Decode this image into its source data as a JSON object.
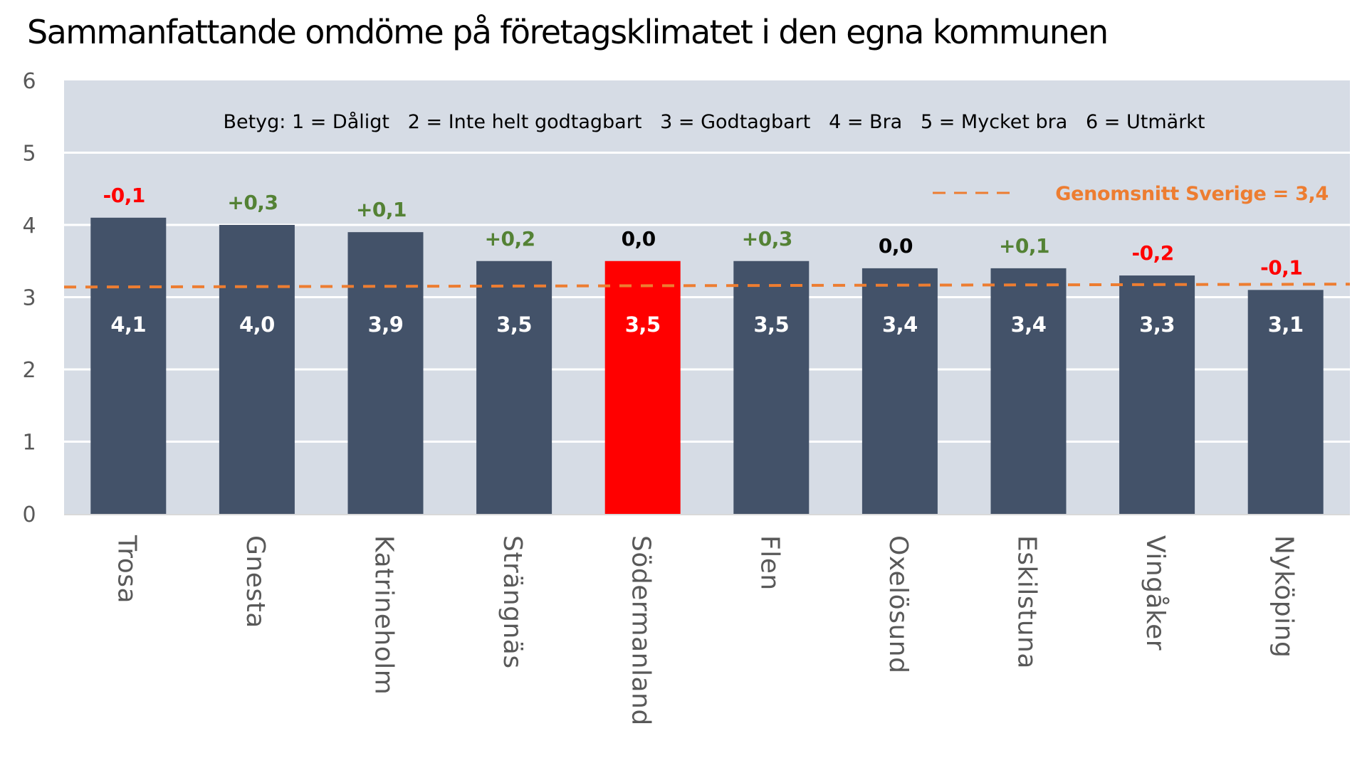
{
  "chart_data": {
    "type": "bar",
    "title": "Sammanfattande omdöme på företagsklimatet i den egna kommunen",
    "subtitle": "Betyg: 1 = Dåligt   2 = Inte helt godtagbart   3 = Godtagbart   4 = Bra   5 = Mycket bra   6 = Utmärkt",
    "xlabel": "",
    "ylabel": "",
    "ylim": [
      0,
      6
    ],
    "yticks": [
      "0",
      "1",
      "2",
      "3",
      "4",
      "5",
      "6"
    ],
    "grid": true,
    "categories": [
      "Trosa",
      "Gnesta",
      "Katrineholm",
      "Strängnäs",
      "Södermanland",
      "Flen",
      "Oxelösund",
      "Eskilstuna",
      "Vingåker",
      "Nyköping"
    ],
    "values": [
      4.1,
      4.0,
      3.9,
      3.5,
      3.5,
      3.5,
      3.4,
      3.4,
      3.3,
      3.1
    ],
    "value_labels": [
      "4,1",
      "4,0",
      "3,9",
      "3,5",
      "3,5",
      "3,5",
      "3,4",
      "3,4",
      "3,3",
      "3,1"
    ],
    "changes": [
      -0.1,
      0.3,
      0.1,
      0.2,
      0.0,
      0.3,
      0.0,
      0.1,
      -0.2,
      -0.1
    ],
    "change_labels": [
      "-0,1",
      "+0,3",
      "+0,1",
      "+0,2",
      "0,0",
      "+0,3",
      "0,0",
      "+0,1",
      "-0,2",
      "-0,1"
    ],
    "highlight_category": "Södermanland",
    "reference_line": {
      "label": "Genomsnitt Sverige = 3,4",
      "value": 3.4,
      "style": "dashed",
      "legend_position": "top-right"
    },
    "colors": {
      "bar": "#435269",
      "highlight_bar": "#ff0000",
      "plot_background": "#d6dce5",
      "gridline": "#ffffff",
      "reference_line": "#ed7d31",
      "change_positive": "#548235",
      "change_negative": "#ff0000",
      "change_zero": "#000000",
      "tick_text": "#595959"
    }
  }
}
